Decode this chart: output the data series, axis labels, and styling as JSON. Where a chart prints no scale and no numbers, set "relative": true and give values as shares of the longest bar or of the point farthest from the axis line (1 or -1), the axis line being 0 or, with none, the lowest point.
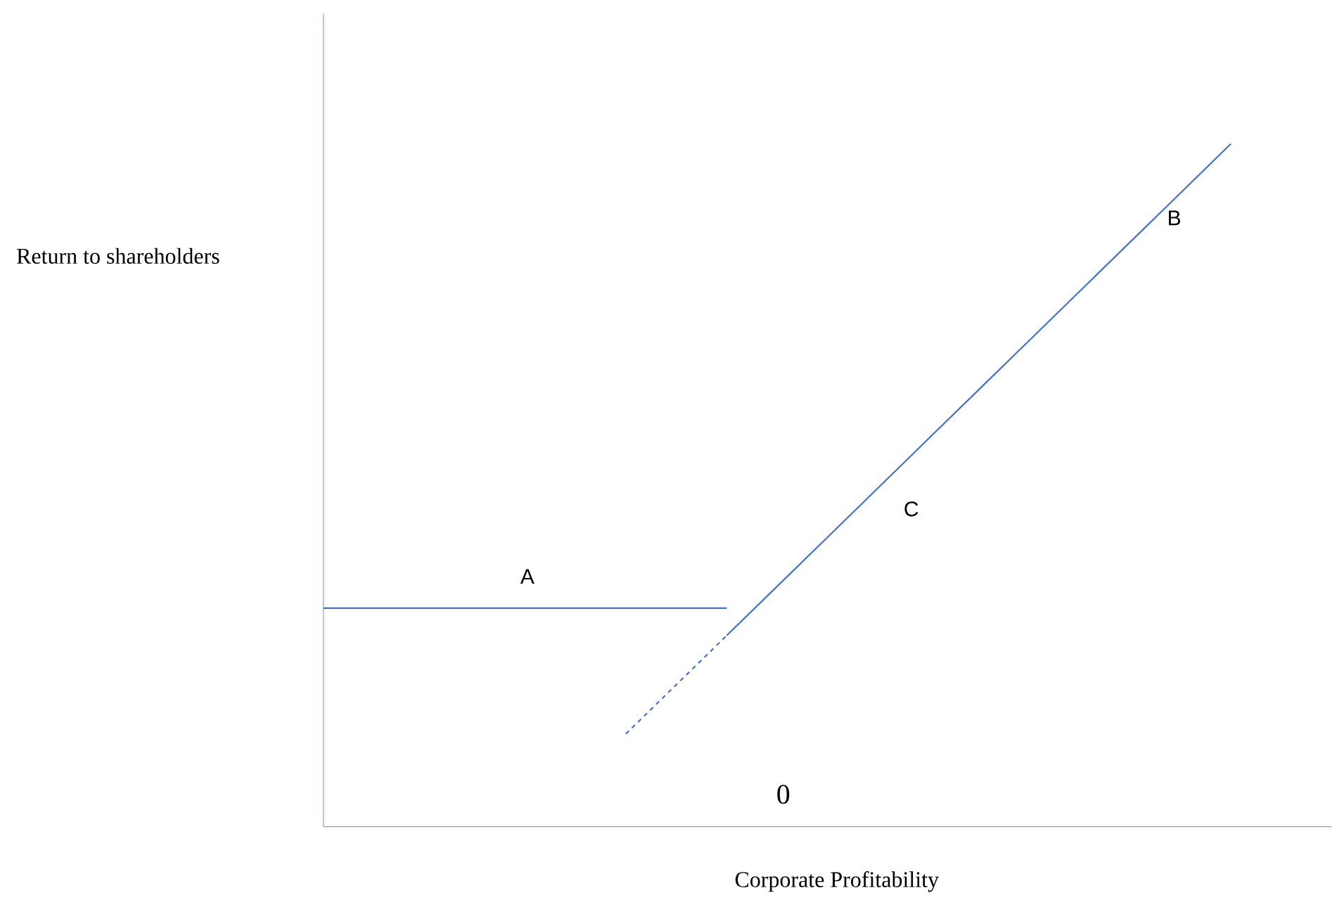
{
  "chart_data": {
    "type": "line",
    "relative": true,
    "xlabel": "Corporate Profitability",
    "ylabel": "Return to shareholders",
    "categories": [
      null,
      null,
      null,
      null,
      null,
      null,
      null,
      null,
      null,
      null,
      null,
      null,
      null,
      null,
      null,
      null,
      null,
      null,
      null,
      null,
      null
    ],
    "series": [
      {
        "name": "A",
        "color": "#4472c4",
        "line_style": "solid",
        "values": [
          0.32,
          0.32,
          0.32,
          0.32,
          0.32,
          0.32,
          0.32,
          0.32,
          0.32,
          null,
          null,
          null,
          null,
          null,
          null,
          null,
          null,
          null,
          null,
          null,
          null
        ]
      },
      {
        "name": "C",
        "color": "#4472c4",
        "line_style": "solid",
        "values": [
          null,
          null,
          null,
          null,
          null,
          null,
          null,
          null,
          0.28,
          0.352,
          0.424,
          0.496,
          0.568,
          0.64,
          0.712,
          0.784,
          0.856,
          0.928,
          1.0,
          null,
          null
        ]
      },
      {
        "color": "#4472c4",
        "line_style": "dashed",
        "values": [
          null,
          null,
          null,
          null,
          null,
          null,
          0.136,
          0.208,
          0.28,
          null,
          null,
          null,
          null,
          null,
          null,
          null,
          null,
          null,
          null,
          null,
          null
        ]
      }
    ],
    "annotations": [
      "B",
      "0"
    ]
  }
}
